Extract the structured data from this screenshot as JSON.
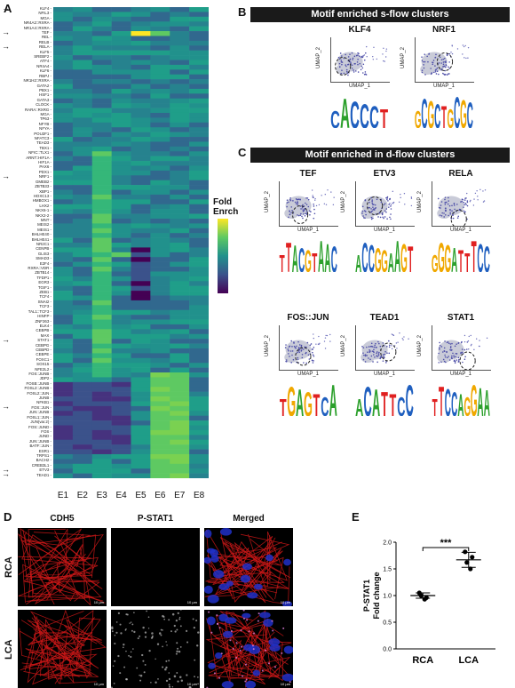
{
  "panels": {
    "A": "A",
    "B": "B",
    "C": "C",
    "D": "D",
    "E": "E"
  },
  "heatmap": {
    "rows": [
      "KLF4",
      "NFIL3",
      "MGA",
      "NR4A2::RXRA",
      "NR1A4::RXRA",
      "TEF",
      "REL",
      "RELB",
      "RELA",
      "KLF5",
      "SREBF2",
      "ATF4",
      "NR4A4",
      "KLF6",
      "RBPJ",
      "NR1H2::RXRA",
      "GATA2",
      "PBX1",
      "HSF1",
      "GATA3",
      "CLOCK",
      "RARA::RXRG",
      "MGA",
      "TP63",
      "NFYB",
      "NFYA",
      "POU2F1",
      "NFATC3",
      "TEAD3",
      "TBX1",
      "NFIC::TLX1",
      "ARNT::HIF1A",
      "HIF1A",
      "PAX6",
      "PDX1",
      "NRF1",
      "GMEB2",
      "ZBTB33",
      "XBP1",
      "HOXC13",
      "HMBOX1",
      "LHX2",
      "NKX6-1",
      "NKX2-2",
      "MNT",
      "MEIS2",
      "MEIS1",
      "BHLHE40",
      "BHLHE41",
      "NR2C1",
      "CENPB",
      "GLIS3",
      "SMAD3",
      "E2F4",
      "RXRA::VDR",
      "ZBTB14",
      "TFDP1",
      "EGR3",
      "TGIF1",
      "ZEB1",
      "TCF4",
      "SNAI2",
      "TCF3",
      "TAL1::TCF3",
      "HINFP",
      "ZNF263",
      "ELK4",
      "CEBPB",
      "MAX",
      "STAT1",
      "CEBPG",
      "CEBPD",
      "CEBPE",
      "FOXC1",
      "SOX15",
      "NFE2L2",
      "FOS::JUNB",
      "JDP2",
      "FOSB::JUNB",
      "FOSL2::JUNB",
      "FOSL2::JUN",
      "JUNB",
      "NFKB1",
      "FOS::JUN",
      "JUN::JUNB",
      "FOSL1::JUN",
      "JUN(var.2)",
      "FOS::JUND",
      "FOS",
      "JUND",
      "JUN::JUNB",
      "BATF::JUN",
      "ESR1",
      "TRPS1",
      "BACH2",
      "CREB3L1",
      "ETV3",
      "TEAD1"
    ],
    "arrows": [
      "KLF4",
      "TEF",
      "RELA",
      "NRF1",
      "STAT1",
      "FOS::JUN",
      "ETV3",
      "TEAD1"
    ],
    "columns": [
      "E1",
      "E2",
      "E3",
      "E4",
      "E5",
      "E6",
      "E7",
      "E8"
    ],
    "legend_title": "Fold\nEnrch",
    "colors": [
      "#440154",
      "#3b528b",
      "#21918c",
      "#5ec962",
      "#fde725"
    ]
  },
  "panelB": {
    "title": "Motif enriched s-flow clusters",
    "motifs": [
      "KLF4",
      "NRF1"
    ],
    "xlabel": "UMAP_1",
    "ylabel": "UMAP_2"
  },
  "panelC": {
    "title": "Motif enriched in d-flow clusters",
    "motifs": [
      "TEF",
      "ETV3",
      "RELA",
      "FOS::JUN",
      "TEAD1",
      "STAT1"
    ],
    "xlabel": "UMAP_1",
    "ylabel": "UMAP_2"
  },
  "panelD": {
    "columns": [
      "CDH5",
      "P-STAT1",
      "Merged"
    ],
    "rows": [
      "RCA",
      "LCA"
    ],
    "scale": "10 µm"
  },
  "chart_data": {
    "type": "scatter",
    "title": "",
    "xlabel": "",
    "ylabel": "P-STAT1\nFold change",
    "categories": [
      "RCA",
      "LCA"
    ],
    "ylim": [
      0.0,
      2.0
    ],
    "yticks": [
      "0.0",
      "0.5",
      "1.0",
      "1.5",
      "2.0"
    ],
    "series": [
      {
        "category": "RCA",
        "points": [
          1.05,
          0.96,
          1.0,
          0.93
        ],
        "mean": 1.0,
        "sd": 0.05
      },
      {
        "category": "LCA",
        "points": [
          1.82,
          1.72,
          1.62,
          1.5
        ],
        "mean": 1.67,
        "sd": 0.14
      }
    ],
    "significance": "***"
  }
}
